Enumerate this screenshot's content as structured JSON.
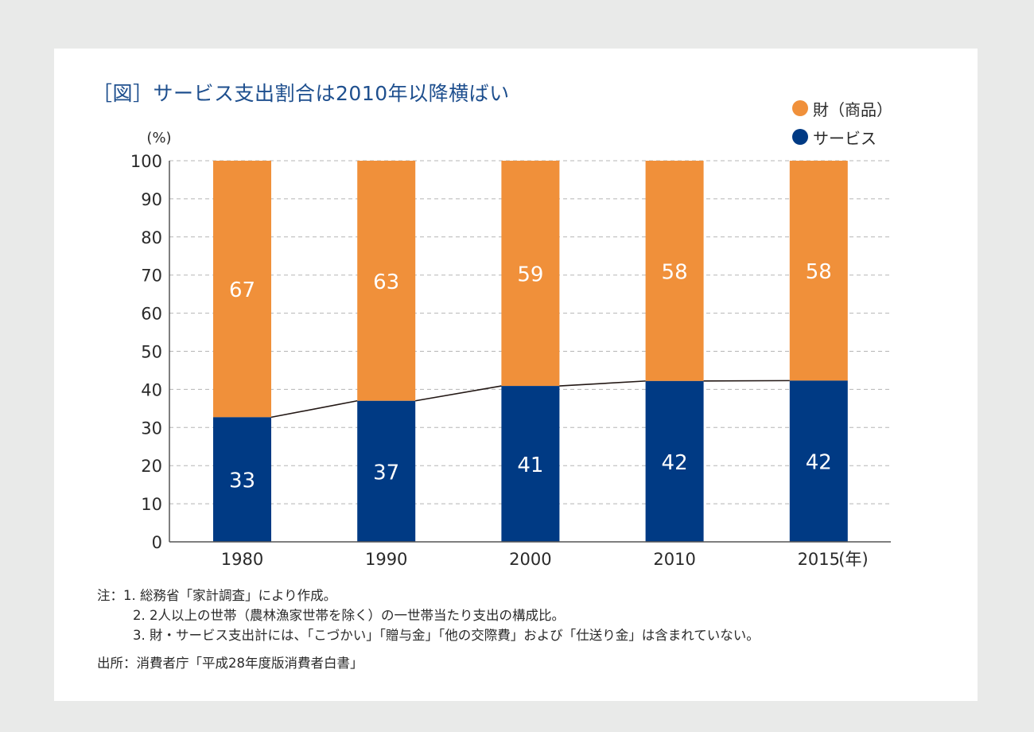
{
  "colors": {
    "goods": "#f0903a",
    "services": "#003a84",
    "title": "#1e4f8e",
    "connector": "#231815",
    "grid": "#b5b5b5",
    "axis": "#555555"
  },
  "chart_data": {
    "type": "bar",
    "stacked": true,
    "title": "［図］サービス支出割合は2010年以降横ばい",
    "xlabel": "(年)",
    "ylabel": "(%)",
    "ylim": [
      0,
      100
    ],
    "yticks": [
      0,
      10,
      20,
      30,
      40,
      50,
      60,
      70,
      80,
      90,
      100
    ],
    "grid": true,
    "legend_position": "top-right",
    "categories": [
      "1980",
      "1990",
      "2000",
      "2010",
      "2015"
    ],
    "series": [
      {
        "name": "サービス",
        "values": [
          33,
          37,
          41,
          42,
          42
        ],
        "plot_values": [
          32.7,
          37.0,
          40.9,
          42.2,
          42.3
        ],
        "color": "#003a84"
      },
      {
        "name": "財（商品）",
        "values": [
          67,
          63,
          59,
          58,
          58
        ],
        "color": "#f0903a"
      }
    ],
    "annotations": [
      "connector lines link the service/goods boundaries between adjacent bars"
    ]
  },
  "legend": {
    "items": [
      {
        "label": "財（商品）",
        "color": "#f0903a"
      },
      {
        "label": "サービス",
        "color": "#003a84"
      }
    ]
  },
  "notes": {
    "prefix": "注：",
    "items": [
      "1. 総務省「家計調査」により作成。",
      "2. 2人以上の世帯（農林漁家世帯を除く）の一世帯当たり支出の構成比。",
      "3. 財・サービス支出計には、「こづかい」「贈与金」「他の交際費」および「仕送り金」は含まれていない。"
    ],
    "source": "出所：消費者庁「平成28年度版消費者白書」"
  }
}
